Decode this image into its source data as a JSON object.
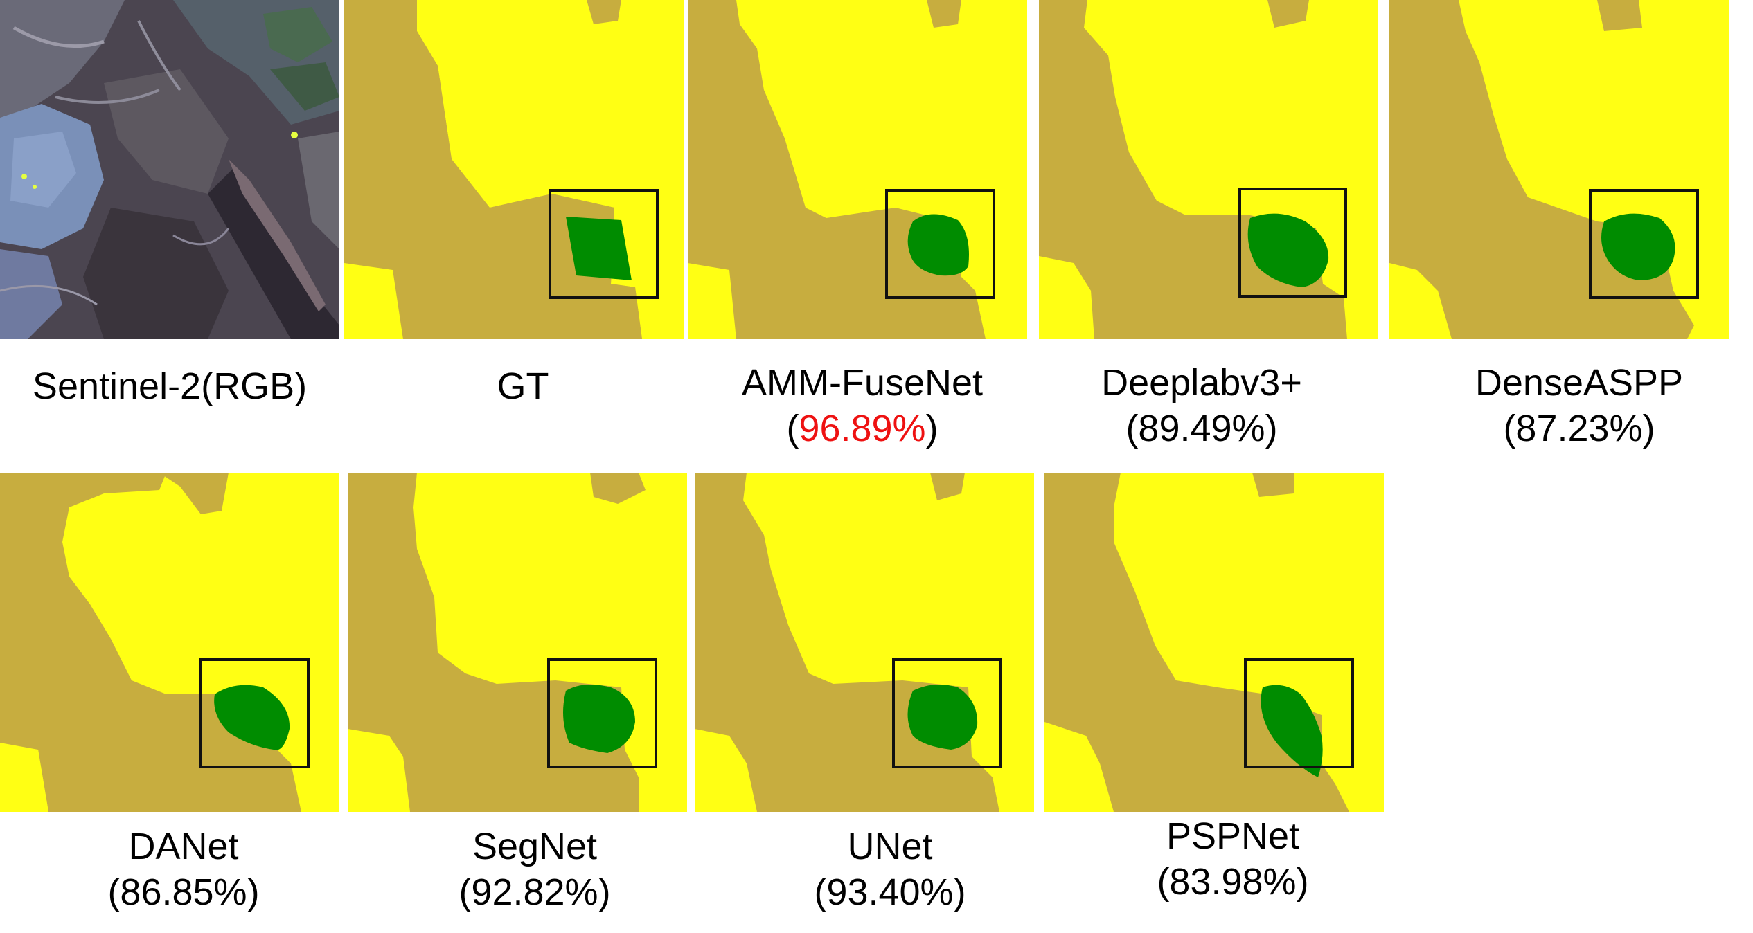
{
  "colors": {
    "class_a": "#c7ad3f",
    "class_b": "#ffff14",
    "class_c": "#008c00",
    "box": "#111111",
    "highlight": "#ee1111"
  },
  "panels": [
    {
      "id": "sentinel",
      "label": "Sentinel-2(RGB)",
      "score": null
    },
    {
      "id": "gt",
      "label": "GT",
      "score": null
    },
    {
      "id": "amm",
      "label": "AMM-FuseNet",
      "score": "96.89%",
      "best": true
    },
    {
      "id": "deeplab",
      "label": "Deeplabv3+",
      "score": "89.49%"
    },
    {
      "id": "denseaspp",
      "label": "DenseASPP",
      "score": "87.23%"
    },
    {
      "id": "danet",
      "label": "DANet",
      "score": "86.85%"
    },
    {
      "id": "segnet",
      "label": "SegNet",
      "score": "92.82%"
    },
    {
      "id": "unet",
      "label": "UNet",
      "score": "93.40%"
    },
    {
      "id": "pspnet",
      "label": "PSPNet",
      "score": "83.98%"
    }
  ]
}
